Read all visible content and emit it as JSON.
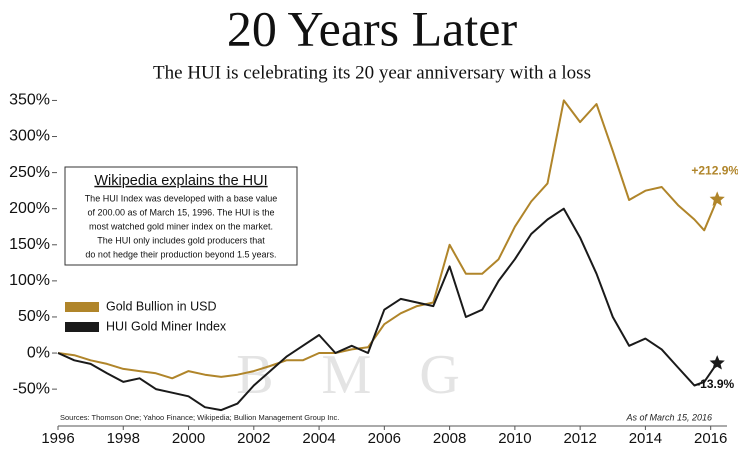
{
  "chart_data": {
    "type": "line",
    "title": "20 Years Later",
    "subtitle": "The HUI is celebrating its 20 year anniversary with a loss",
    "watermark": "BMG",
    "note_box": {
      "title": "Wikipedia explains the HUI",
      "lines": [
        "The HUI Index was developed with a base value",
        "of 200.00 as of March 15, 1996.  The HUI is the",
        "most watched gold miner index on the market.",
        "The HUI only includes gold producers that",
        "do not hedge their production beyond 1.5 years."
      ]
    },
    "sources": "Sources: Thomson One; Yahoo Finance; Wikipedia; Bullion Management Group Inc.",
    "as_of": "As of March 15, 2016",
    "legend": "middle left",
    "grid": false,
    "x": [
      1996,
      1996.5,
      1997,
      1997.5,
      1998,
      1998.5,
      1999,
      1999.5,
      2000,
      2000.5,
      2001,
      2001.5,
      2002,
      2002.5,
      2003,
      2003.5,
      2004,
      2004.5,
      2005,
      2005.5,
      2006,
      2006.5,
      2007,
      2007.5,
      2008,
      2008.5,
      2009,
      2009.5,
      2010,
      2010.5,
      2011,
      2011.5,
      2012,
      2012.5,
      2013,
      2013.5,
      2014,
      2014.5,
      2015,
      2015.5,
      2015.8,
      2016.2
    ],
    "xlim": [
      1996,
      2016.5
    ],
    "xticks": [
      1996,
      1998,
      2000,
      2002,
      2004,
      2006,
      2008,
      2010,
      2012,
      2014,
      2016
    ],
    "ylim": [
      -90,
      370
    ],
    "yticks": [
      {
        "value": -50,
        "label": "-50%"
      },
      {
        "value": 0,
        "label": "0%"
      },
      {
        "value": 50,
        "label": "50%"
      },
      {
        "value": 100,
        "label": "100%"
      },
      {
        "value": 150,
        "label": "150%"
      },
      {
        "value": 200,
        "label": "200%"
      },
      {
        "value": 250,
        "label": "250%"
      },
      {
        "value": 300,
        "label": "300%"
      },
      {
        "value": 350,
        "label": "350%"
      }
    ],
    "series": [
      {
        "name": "Gold Bullion in USD",
        "color": "#b0852a",
        "values": [
          0,
          -3,
          -10,
          -15,
          -22,
          -25,
          -28,
          -35,
          -25,
          -30,
          -33,
          -30,
          -25,
          -18,
          -10,
          -10,
          0,
          0,
          5,
          8,
          40,
          55,
          65,
          70,
          150,
          110,
          110,
          130,
          175,
          210,
          235,
          350,
          320,
          345,
          280,
          212,
          225,
          230,
          205,
          185,
          170,
          212.9
        ],
        "value_labels": [
          null,
          null,
          null,
          null,
          null,
          null,
          null,
          null,
          null,
          null,
          null,
          null,
          null,
          null,
          null,
          null,
          null,
          null,
          null,
          null,
          null,
          null,
          null,
          null,
          null,
          null,
          null,
          null,
          null,
          null,
          null,
          null,
          null,
          null,
          null,
          null,
          null,
          null,
          null,
          null,
          null,
          "+212.9%"
        ]
      },
      {
        "name": "HUI Gold Miner Index",
        "color": "#1a1a1a",
        "values": [
          0,
          -10,
          -15,
          -28,
          -40,
          -35,
          -50,
          -55,
          -60,
          -75,
          -79,
          -70,
          -45,
          -25,
          -5,
          10,
          25,
          0,
          10,
          0,
          60,
          75,
          70,
          65,
          120,
          50,
          60,
          100,
          130,
          165,
          185,
          200,
          160,
          110,
          50,
          10,
          20,
          5,
          -20,
          -45,
          -40,
          -13.9
        ],
        "value_labels": [
          null,
          null,
          null,
          null,
          null,
          null,
          null,
          null,
          null,
          null,
          null,
          null,
          null,
          null,
          null,
          null,
          null,
          null,
          null,
          null,
          null,
          null,
          null,
          null,
          null,
          null,
          null,
          null,
          null,
          null,
          null,
          null,
          null,
          null,
          null,
          null,
          null,
          null,
          null,
          null,
          null,
          "-13.9%"
        ]
      }
    ]
  }
}
